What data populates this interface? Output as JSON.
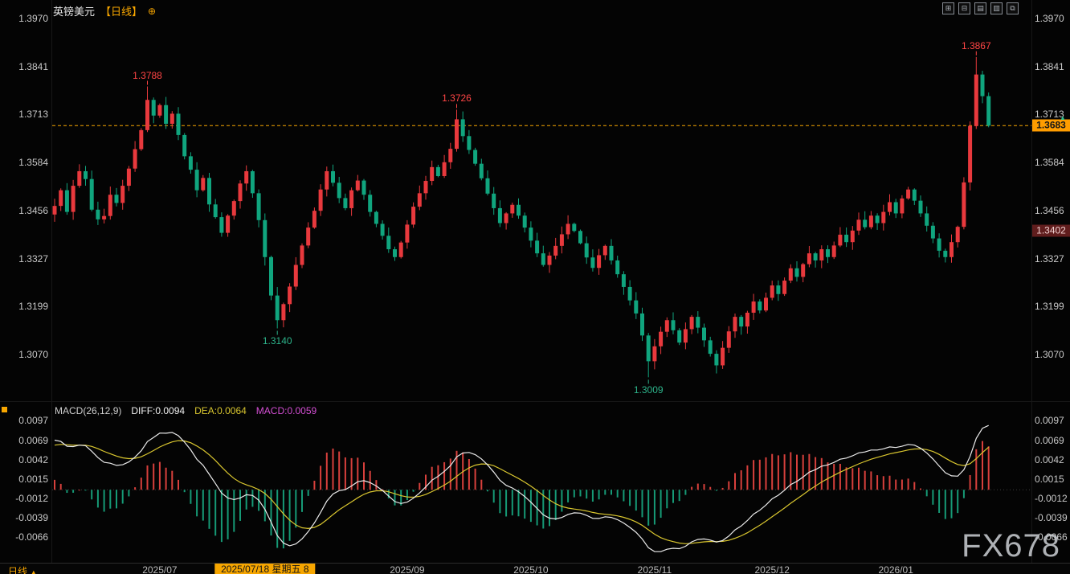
{
  "header": {
    "symbol": "英镑美元",
    "period": "【日线】",
    "settings_icon": "⊕"
  },
  "toolbar_icons": [
    {
      "name": "zoom-in-icon",
      "glyph": "⊞"
    },
    {
      "name": "zoom-out-icon",
      "glyph": "⊟"
    },
    {
      "name": "candle-style-icon",
      "glyph": "▤"
    },
    {
      "name": "indicator-settings-icon",
      "glyph": "▥"
    },
    {
      "name": "fullscreen-icon",
      "glyph": "⧉"
    }
  ],
  "colors": {
    "up": "#e8393d",
    "down": "#10a57e",
    "accent": "#f7a600",
    "diff_line": "#ebebeb",
    "dea_line": "#d9c62f",
    "hist_up": "#d8403c",
    "hist_down": "#169a76",
    "ann_high": "#ff4545",
    "ann_low": "#2db38a",
    "axis_text": "#c9c9c9"
  },
  "price_axis": {
    "values": [
      1.397,
      1.3841,
      1.3713,
      1.3584,
      1.3456,
      1.3327,
      1.3199,
      1.307
    ]
  },
  "current_price": {
    "value": "1.3683",
    "numeric": 1.3683,
    "arrow": "▲"
  },
  "ref_price": {
    "value": "1.3402",
    "numeric": 1.3402
  },
  "macd_pane": {
    "title": "MACD(26,12,9)",
    "diff_label": "DIFF:0.0094",
    "dea_label": "DEA:0.0064",
    "macd_label": "MACD:0.0059",
    "axis_values": [
      0.0097,
      0.0069,
      0.0042,
      0.0015,
      -0.0012,
      -0.0039,
      -0.0066
    ]
  },
  "bottom": {
    "period": "日线",
    "dropdown": "▲",
    "selected_date": "2025/07/18 星期五 8",
    "selected_index": 34,
    "labels": [
      {
        "text": "2025/07",
        "index": 17
      },
      {
        "text": "2025/09",
        "index": 57
      },
      {
        "text": "2025/10",
        "index": 77
      },
      {
        "text": "2025/11",
        "index": 97
      },
      {
        "text": "2025/12",
        "index": 116
      },
      {
        "text": "2026/01",
        "index": 136
      }
    ]
  },
  "watermark": "FX678",
  "chart_data": {
    "type": "candlestick",
    "title": "英镑美元 日线 (GBP/USD Daily)",
    "indicator": "MACD(26,12,9)",
    "price_range": [
      1.307,
      1.397
    ],
    "macd_range": [
      -0.0066,
      0.0097
    ],
    "first_open": 1.3445,
    "closes": [
      1.3468,
      1.351,
      1.3452,
      1.3522,
      1.3561,
      1.354,
      1.3458,
      1.3432,
      1.3441,
      1.3498,
      1.3476,
      1.3522,
      1.3568,
      1.362,
      1.3671,
      1.3752,
      1.371,
      1.3738,
      1.3688,
      1.3715,
      1.3658,
      1.3601,
      1.3565,
      1.351,
      1.3543,
      1.3472,
      1.3438,
      1.3396,
      1.3442,
      1.3481,
      1.3528,
      1.3561,
      1.3502,
      1.343,
      1.3331,
      1.3228,
      1.3162,
      1.3205,
      1.3252,
      1.331,
      1.3362,
      1.341,
      1.3455,
      1.3512,
      1.3561,
      1.353,
      1.3489,
      1.3462,
      1.351,
      1.3536,
      1.3498,
      1.3452,
      1.342,
      1.3388,
      1.3352,
      1.3331,
      1.337,
      1.3418,
      1.3466,
      1.3502,
      1.3535,
      1.3572,
      1.3548,
      1.3585,
      1.3621,
      1.37,
      1.3655,
      1.3618,
      1.3581,
      1.3542,
      1.3501,
      1.3462,
      1.3422,
      1.3448,
      1.3471,
      1.3442,
      1.341,
      1.3375,
      1.3341,
      1.331,
      1.3335,
      1.3361,
      1.3392,
      1.342,
      1.3401,
      1.3368,
      1.333,
      1.3302,
      1.3336,
      1.3361,
      1.3322,
      1.3285,
      1.3251,
      1.3215,
      1.318,
      1.3121,
      1.3052,
      1.3092,
      1.3131,
      1.3162,
      1.3135,
      1.3102,
      1.3138,
      1.3171,
      1.3142,
      1.3108,
      1.3072,
      1.3041,
      1.3088,
      1.3132,
      1.3171,
      1.3145,
      1.3182,
      1.3212,
      1.3188,
      1.3222,
      1.3255,
      1.3232,
      1.3268,
      1.3301,
      1.3278,
      1.3312,
      1.3341,
      1.3322,
      1.3352,
      1.3331,
      1.3362,
      1.3391,
      1.3371,
      1.3402,
      1.3431,
      1.3411,
      1.3442,
      1.3422,
      1.3452,
      1.3478,
      1.3448,
      1.3488,
      1.3512,
      1.3482,
      1.3448,
      1.3415,
      1.3381,
      1.3348,
      1.3331,
      1.3371,
      1.3412,
      1.3531,
      1.3682,
      1.382,
      1.3762,
      1.3683
    ],
    "key_points": [
      {
        "index": 15,
        "high": 1.3788,
        "label": "1.3788"
      },
      {
        "index": 36,
        "low": 1.314,
        "label": "1.3140"
      },
      {
        "index": 65,
        "high": 1.3726,
        "label": "1.3726"
      },
      {
        "index": 96,
        "low": 1.3009,
        "label": "1.3009"
      },
      {
        "index": 149,
        "high": 1.3867,
        "label": "1.3867"
      }
    ],
    "last_price": 1.3683,
    "macd_summary": {
      "diff": 0.0094,
      "dea": 0.0064,
      "macd": 0.0059
    }
  }
}
